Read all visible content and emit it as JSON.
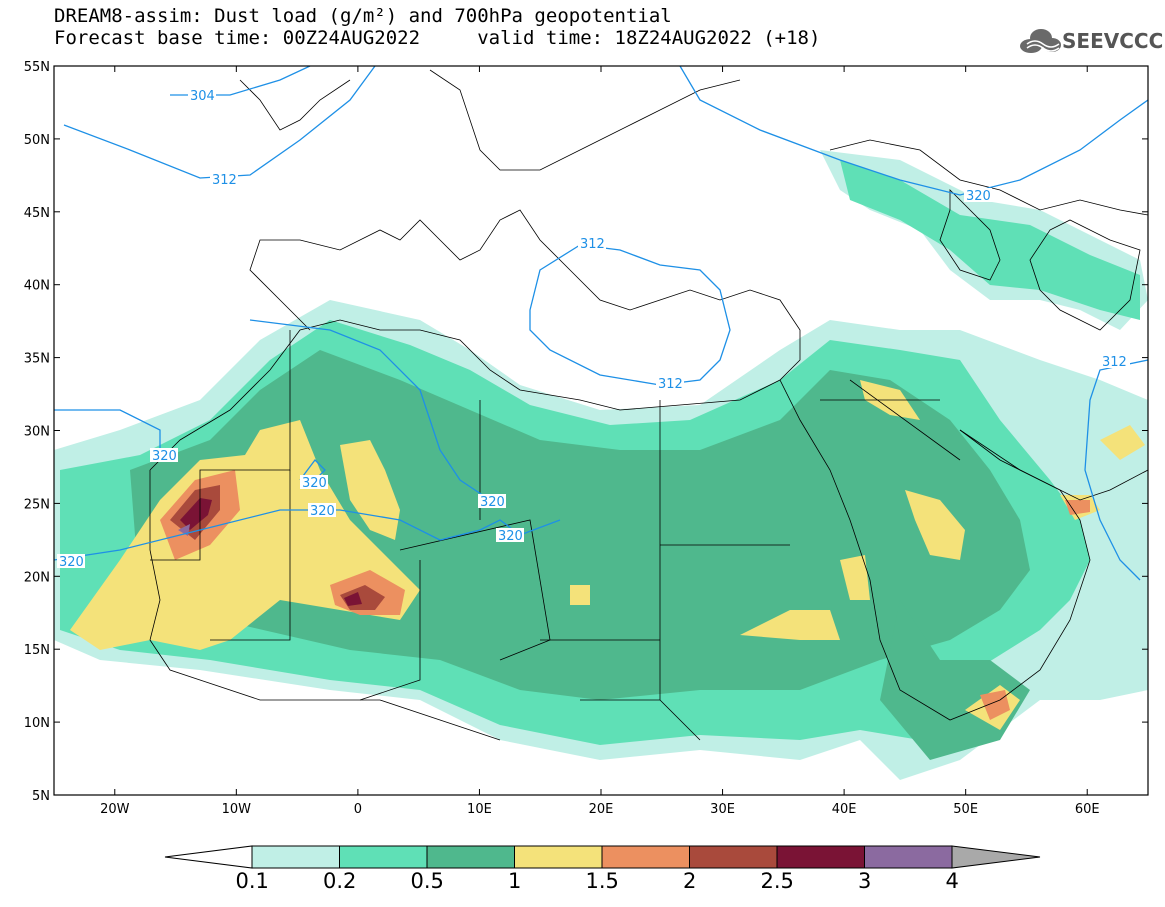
{
  "header": {
    "title_line1": "DREAM8-assim: Dust load (g/m²) and 700hPa geopotential",
    "title_line2": "Forecast base time: 00Z24AUG2022     valid time: 18Z24AUG2022 (+18)"
  },
  "logo": {
    "text": "SEEVCCC",
    "icon": "cloud-icon"
  },
  "map": {
    "lon_range": [
      -25,
      65
    ],
    "lat_range": [
      5,
      55
    ],
    "lon_ticks": [
      "20W",
      "10W",
      "0",
      "10E",
      "20E",
      "30E",
      "40E",
      "50E",
      "60E"
    ],
    "lat_ticks": [
      "55N",
      "50N",
      "45N",
      "40N",
      "35N",
      "30N",
      "25N",
      "20N",
      "15N",
      "10N",
      "5N"
    ]
  },
  "contours": {
    "color": "#1e90e6",
    "labels": [
      {
        "text": "304"
      },
      {
        "text": "312"
      },
      {
        "text": "312"
      },
      {
        "text": "312"
      },
      {
        "text": "312"
      },
      {
        "text": "320"
      },
      {
        "text": "320"
      },
      {
        "text": "320"
      },
      {
        "text": "320"
      },
      {
        "text": "320"
      },
      {
        "text": "320"
      },
      {
        "text": "320"
      }
    ]
  },
  "colorbar": {
    "labels": [
      "0.1",
      "0.2",
      "0.5",
      "1",
      "1.5",
      "2",
      "2.5",
      "3",
      "4"
    ],
    "colors": [
      "#c0efe6",
      "#5fe0b6",
      "#4fb88d",
      "#f4e27a",
      "#ec9060",
      "#a94a3c",
      "#7a1335",
      "#8b6aa0"
    ],
    "low_color": "#ffffff",
    "high_color": "#a9a9a9"
  }
}
